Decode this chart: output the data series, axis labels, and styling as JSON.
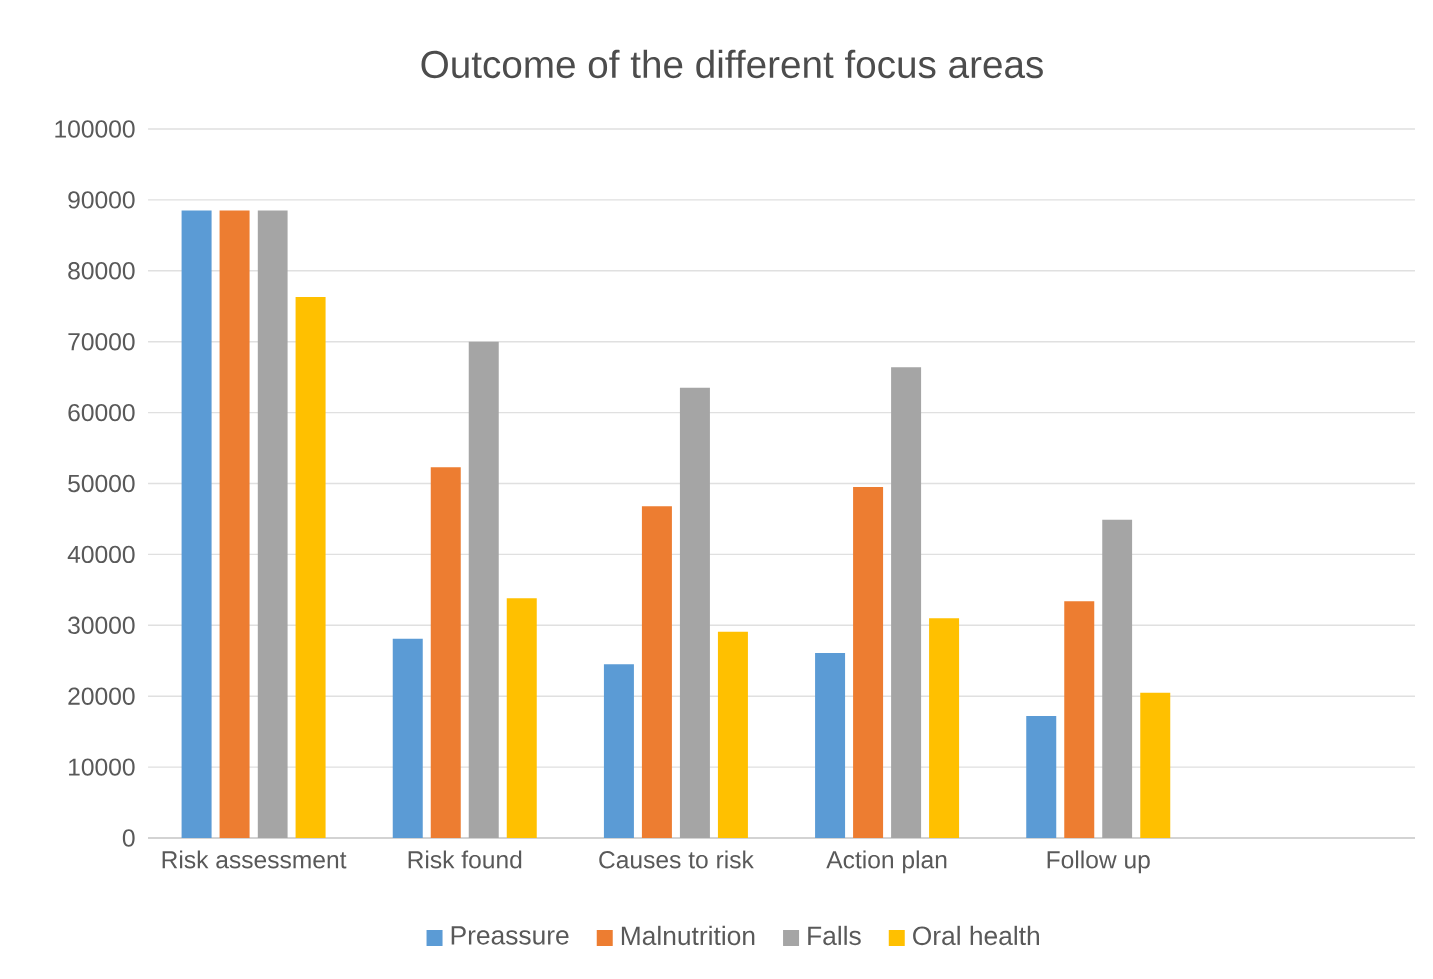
{
  "chart_data": {
    "type": "bar",
    "title": "Outcome of the different focus areas",
    "categories": [
      "Risk assessment",
      "Risk found",
      "Causes to risk",
      "Action plan",
      "Follow up",
      null
    ],
    "series": [
      {
        "name": "Preassure",
        "color": "#5b9bd5",
        "values": [
          88500,
          28100,
          24500,
          26100,
          17200,
          null
        ]
      },
      {
        "name": "Malnutrition",
        "color": "#ed7d31",
        "values": [
          88500,
          52300,
          46800,
          49500,
          33400,
          null
        ]
      },
      {
        "name": "Falls",
        "color": "#a5a5a5",
        "values": [
          88500,
          70000,
          63500,
          66400,
          44900,
          null
        ]
      },
      {
        "name": "Oral health",
        "color": "#ffc000",
        "values": [
          76300,
          33800,
          29100,
          31000,
          20500,
          null
        ]
      }
    ],
    "ylim": [
      0,
      100000
    ],
    "yticks": [
      0,
      10000,
      20000,
      30000,
      40000,
      50000,
      60000,
      70000,
      80000,
      90000,
      100000
    ],
    "grid": "y",
    "legend": "bottom"
  }
}
